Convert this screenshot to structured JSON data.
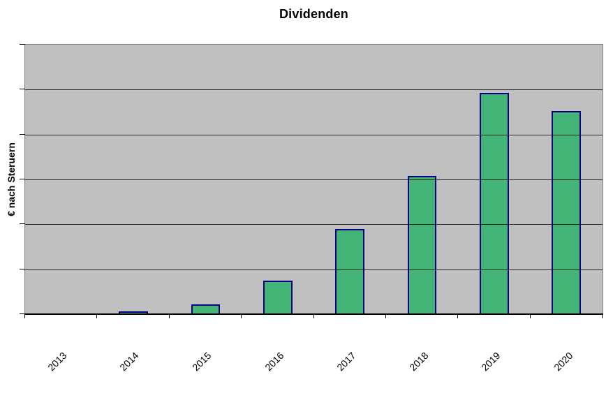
{
  "chart_data": {
    "type": "bar",
    "title": "Dividenden",
    "ylabel": "€ nach Steruern",
    "xlabel": "",
    "categories": [
      "2013",
      "2014",
      "2015",
      "2016",
      "2017",
      "2018",
      "2019",
      "2020"
    ],
    "values": [
      0,
      0.06,
      0.22,
      0.74,
      1.89,
      3.08,
      4.92,
      4.52
    ],
    "ylim": [
      0,
      6
    ],
    "y_major_unit": 1,
    "y_tick_labels": [],
    "grid": "horizontal-major",
    "legend_position": "none",
    "colors": {
      "bar_fill": "#41B476",
      "bar_border": "#000080",
      "plot_background": "#C0C0C0",
      "plot_border": "#808080",
      "gridline": "#000000",
      "axis": "#000000",
      "page_background": "#FFFFFF",
      "text": "#000000"
    }
  }
}
